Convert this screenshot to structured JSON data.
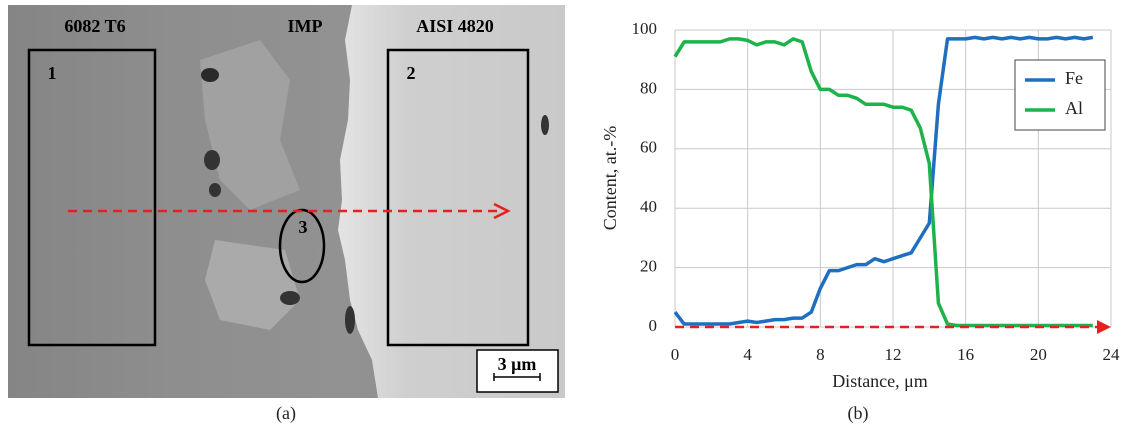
{
  "micrograph": {
    "labels": [
      "6082 T6",
      "IMP",
      "AISI 4820"
    ],
    "regions": [
      "1",
      "2",
      "3"
    ],
    "scale_bar": "3 μm",
    "caption": "(a)"
  },
  "chart_data": {
    "type": "line",
    "caption": "(b)",
    "x_label": "Distance, μm",
    "y_label": "Content, at.-%",
    "x": [
      0,
      0.5,
      1,
      1.5,
      2,
      2.5,
      3,
      3.5,
      4,
      4.5,
      5,
      5.5,
      6,
      6.5,
      7,
      7.5,
      8,
      8.5,
      9,
      9.5,
      10,
      10.5,
      11,
      11.5,
      12,
      12.5,
      13,
      13.5,
      14,
      14.5,
      15,
      15.5,
      16,
      16.5,
      17,
      17.5,
      18,
      18.5,
      19,
      19.5,
      20,
      20.5,
      21,
      21.5,
      22,
      22.5,
      23
    ],
    "series": [
      {
        "name": "Fe",
        "color": "#1f6fc0",
        "values": [
          5,
          1,
          1,
          1,
          1,
          1,
          1,
          1.5,
          2,
          1.5,
          2,
          2.5,
          2.5,
          3,
          3,
          5,
          13,
          19,
          19,
          20,
          21,
          21,
          23,
          22,
          23,
          24,
          25,
          30,
          35,
          75,
          97,
          97,
          97,
          97.5,
          97,
          97.5,
          97,
          97.5,
          97,
          97.5,
          97,
          97,
          97.5,
          97,
          97.5,
          97,
          97.5
        ]
      },
      {
        "name": "Al",
        "color": "#1db34a",
        "values": [
          91,
          96,
          96,
          96,
          96,
          96,
          97,
          97,
          96.5,
          95,
          96,
          96,
          95,
          97,
          96,
          86,
          80,
          80,
          78,
          78,
          77,
          75,
          75,
          75,
          74,
          74,
          73,
          67,
          55,
          8,
          1,
          0.5,
          0.5,
          0.5,
          0.5,
          0.5,
          0.5,
          0.5,
          0.5,
          0.5,
          0.5,
          0.5,
          0.5,
          0.5,
          0.5,
          0.5,
          0.5
        ]
      }
    ],
    "xlim": [
      0,
      24
    ],
    "xticks": [
      0,
      4,
      8,
      12,
      16,
      20,
      24
    ],
    "ylim": [
      0,
      100
    ],
    "yticks": [
      0,
      20,
      40,
      60,
      80,
      100
    ],
    "grid": true,
    "legend": "upper right"
  }
}
